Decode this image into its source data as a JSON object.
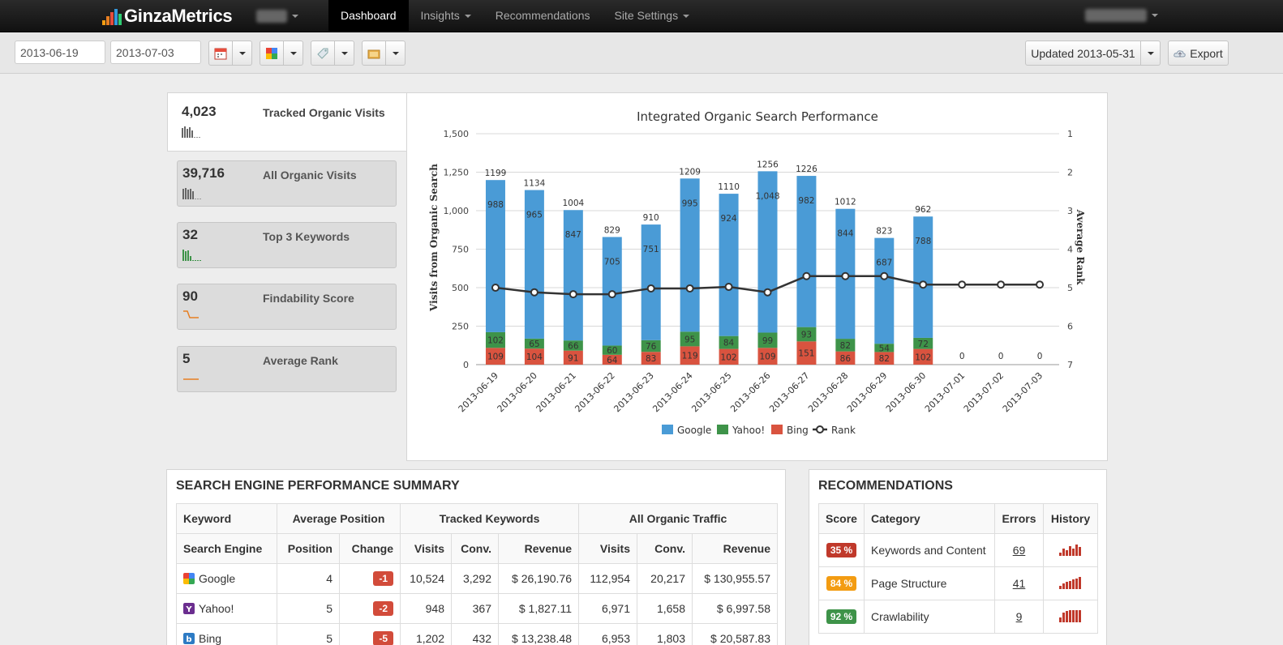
{
  "brand": {
    "name": "GinzaMetrics"
  },
  "nav": {
    "items": [
      {
        "label": "Dashboard",
        "active": true
      },
      {
        "label": "Insights"
      },
      {
        "label": "Recommendations"
      },
      {
        "label": "Site Settings"
      }
    ]
  },
  "toolbar": {
    "start_date": "2013-06-19",
    "end_date": "2013-07-03",
    "updated_label": "Updated 2013-05-31",
    "export_label": "Export"
  },
  "kpis": [
    {
      "value": "4,023",
      "label": "Tracked Organic Visits"
    },
    {
      "value": "39,716",
      "label": "All Organic Visits"
    },
    {
      "value": "32",
      "label": "Top 3 Keywords"
    },
    {
      "value": "90",
      "label": "Findability Score"
    },
    {
      "value": "5",
      "label": "Average Rank"
    }
  ],
  "chart_data": {
    "type": "bar",
    "title": "Integrated Organic Search Performance",
    "ylabel": "Visits from Organic Search",
    "y2label": "Average Rank",
    "ylim": [
      0,
      1500
    ],
    "yticks": [
      "0",
      "250",
      "500",
      "750",
      "1,000",
      "1,250",
      "1,500"
    ],
    "y2lim": [
      1,
      7
    ],
    "y2ticks": [
      "1",
      "2",
      "3",
      "4",
      "5",
      "6",
      "7"
    ],
    "categories": [
      "2013-06-19",
      "2013-06-20",
      "2013-06-21",
      "2013-06-22",
      "2013-06-23",
      "2013-06-24",
      "2013-06-25",
      "2013-06-26",
      "2013-06-27",
      "2013-06-28",
      "2013-06-29",
      "2013-06-30",
      "2013-07-01",
      "2013-07-02",
      "2013-07-03"
    ],
    "stacked": true,
    "series": [
      {
        "name": "Bing",
        "color": "#d9533f",
        "values": [
          109,
          104,
          91,
          64,
          83,
          119,
          102,
          109,
          151,
          86,
          82,
          102,
          0,
          0,
          0
        ],
        "labels": [
          "109",
          "104",
          "91",
          "64",
          "83",
          "119",
          "102",
          "109",
          "151",
          "86",
          "82",
          "102",
          "",
          "",
          ""
        ]
      },
      {
        "name": "Yahoo!",
        "color": "#3e9349",
        "values": [
          102,
          65,
          66,
          60,
          76,
          95,
          84,
          99,
          93,
          82,
          54,
          72,
          0,
          0,
          0
        ],
        "labels": [
          "102",
          "65",
          "66",
          "60",
          "76",
          "95",
          "84",
          "99",
          "93",
          "82",
          "54",
          "72",
          "",
          "",
          ""
        ]
      },
      {
        "name": "Google",
        "color": "#4a9bd6",
        "values": [
          988,
          965,
          847,
          705,
          751,
          995,
          924,
          1048,
          982,
          844,
          687,
          788,
          0,
          0,
          0
        ],
        "labels": [
          "988",
          "965",
          "847",
          "705",
          "751",
          "995",
          "924",
          "1,048",
          "982",
          "844",
          "687",
          "788",
          "",
          "",
          ""
        ]
      }
    ],
    "totals": [
      "1199",
      "1134",
      "1004",
      "829",
      "910",
      "1209",
      "1110",
      "1256",
      "1226",
      "1012",
      "823",
      "962",
      "0",
      "0",
      "0"
    ],
    "rank": {
      "name": "Rank",
      "color": "#333333",
      "values": [
        5.0,
        5.12,
        5.17,
        5.17,
        5.02,
        5.02,
        4.98,
        5.12,
        4.7,
        4.7,
        4.7,
        4.92,
        4.92,
        4.92,
        4.92
      ]
    },
    "legend": [
      "Google",
      "Yahoo!",
      "Bing",
      "Rank"
    ]
  },
  "perf": {
    "title": "SEARCH ENGINE PERFORMANCE SUMMARY",
    "head1": [
      "Keyword",
      "Average Position",
      "Tracked Keywords",
      "All Organic Traffic"
    ],
    "head2": [
      "Search Engine",
      "Position",
      "Change",
      "Visits",
      "Conv.",
      "Revenue",
      "Visits",
      "Conv.",
      "Revenue"
    ],
    "rows": [
      {
        "engine": "Google",
        "icon": "google-icon",
        "position": "4",
        "change": "-1",
        "visits": "10,524",
        "conv": "3,292",
        "revenue": "$ 26,190.76",
        "all_visits": "112,954",
        "all_conv": "20,217",
        "all_revenue": "$ 130,955.57"
      },
      {
        "engine": "Yahoo!",
        "icon": "yahoo-icon",
        "position": "5",
        "change": "-2",
        "visits": "948",
        "conv": "367",
        "revenue": "$ 1,827.11",
        "all_visits": "6,971",
        "all_conv": "1,658",
        "all_revenue": "$ 6,997.58"
      },
      {
        "engine": "Bing",
        "icon": "bing-icon",
        "position": "5",
        "change": "-5",
        "visits": "1,202",
        "conv": "432",
        "revenue": "$ 13,238.48",
        "all_visits": "6,953",
        "all_conv": "1,803",
        "all_revenue": "$ 20,587.83"
      }
    ]
  },
  "recs": {
    "title": "RECOMMENDATIONS",
    "headers": [
      "Score",
      "Category",
      "Errors",
      "History"
    ],
    "rows": [
      {
        "score": "35 %",
        "color": "#c0392b",
        "category": "Keywords and Content",
        "errors": "69",
        "history": [
          3,
          6,
          5,
          8,
          6,
          9,
          7
        ]
      },
      {
        "score": "84 %",
        "color": "#f39c12",
        "category": "Page Structure",
        "errors": "41",
        "history": [
          3,
          5,
          6,
          7,
          8,
          9,
          10
        ]
      },
      {
        "score": "92 %",
        "color": "#3e9349",
        "category": "Crawlability",
        "errors": "9",
        "history": [
          4,
          8,
          9,
          10,
          10,
          10,
          10
        ]
      }
    ]
  }
}
